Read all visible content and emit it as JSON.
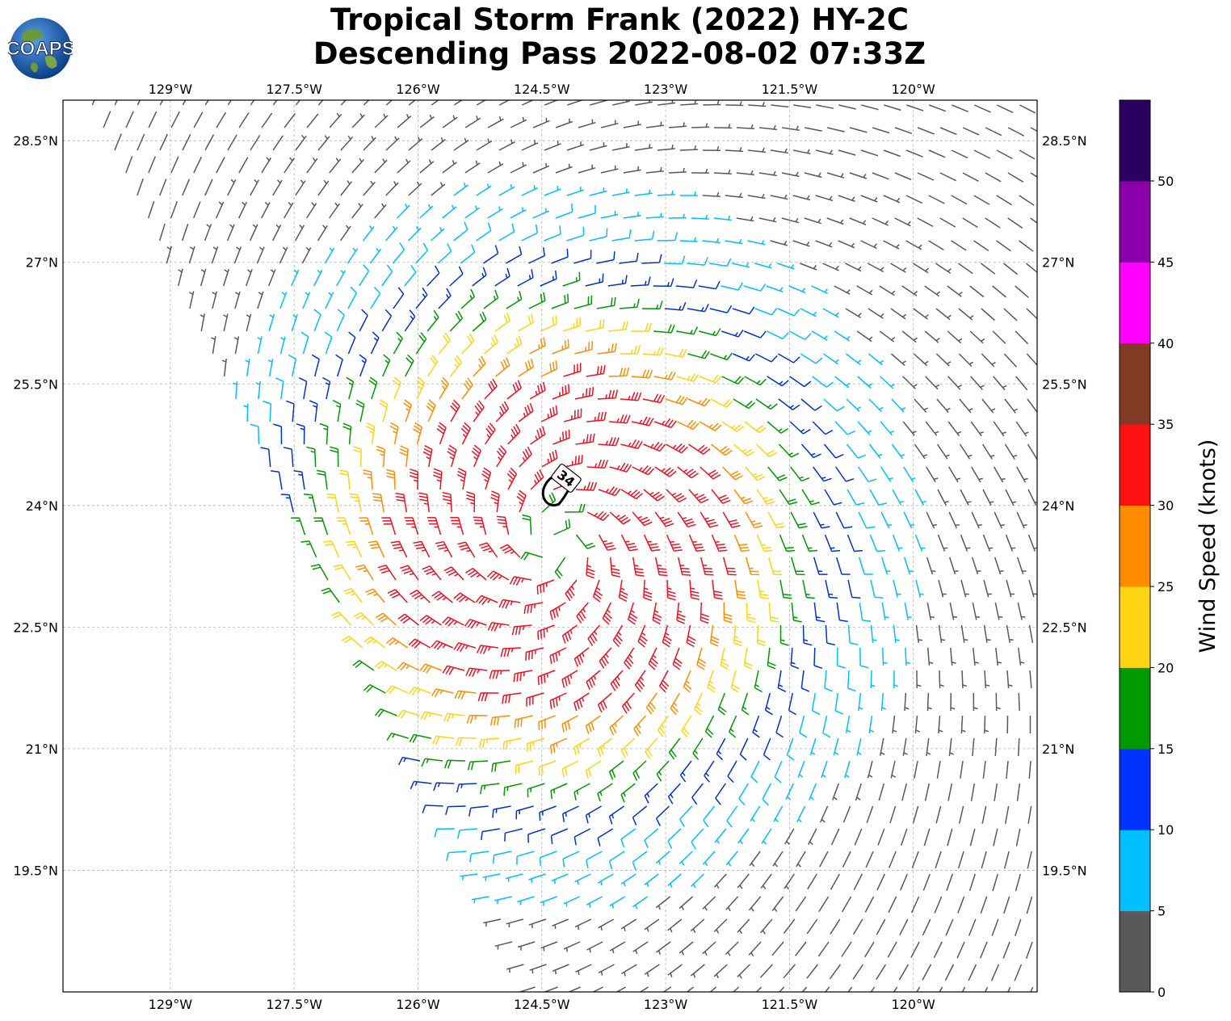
{
  "header": {
    "title_line1": "Tropical Storm Frank (2022) HY-2C",
    "title_line2": "Descending Pass 2022-08-02 07:33Z",
    "logo_text": "COAPS"
  },
  "map": {
    "lon_range": [
      -130.3,
      -118.5
    ],
    "lat_range": [
      18.0,
      29.0
    ],
    "grid": true,
    "lon_ticks": [
      {
        "value": -129.0,
        "label": "129°W"
      },
      {
        "value": -127.5,
        "label": "127.5°W"
      },
      {
        "value": -126.0,
        "label": "126°W"
      },
      {
        "value": -124.5,
        "label": "124.5°W"
      },
      {
        "value": -123.0,
        "label": "123°W"
      },
      {
        "value": -121.5,
        "label": "121.5°W"
      },
      {
        "value": -120.0,
        "label": "120°W"
      }
    ],
    "lat_ticks": [
      {
        "value": 28.5,
        "label": "28.5°N"
      },
      {
        "value": 27.0,
        "label": "27°N"
      },
      {
        "value": 25.5,
        "label": "25.5°N"
      },
      {
        "value": 24.0,
        "label": "24°N"
      },
      {
        "value": 22.5,
        "label": "22.5°N"
      },
      {
        "value": 21.0,
        "label": "21°N"
      },
      {
        "value": 19.5,
        "label": "19.5°N"
      }
    ],
    "storm_center": {
      "lon": -124.35,
      "lat": 23.55
    },
    "contour": {
      "label": "34",
      "color": "#000000"
    },
    "swath_west_edge": [
      [
        -129.0,
        27.0
      ],
      [
        -129.95,
        28.95
      ],
      [
        -124.5,
        17.9
      ],
      [
        -126.0,
        20.9
      ]
    ]
  },
  "colorbar": {
    "label": "Wind Speed (knots)",
    "ticks": [
      "0",
      "5",
      "10",
      "15",
      "20",
      "25",
      "30",
      "35",
      "40",
      "45",
      "50"
    ],
    "bins": [
      {
        "min": 0,
        "max": 5,
        "color": "#595959"
      },
      {
        "min": 5,
        "max": 10,
        "color": "#00bfff"
      },
      {
        "min": 10,
        "max": 15,
        "color": "#0033ff"
      },
      {
        "min": 15,
        "max": 20,
        "color": "#009900"
      },
      {
        "min": 20,
        "max": 25,
        "color": "#ffd412"
      },
      {
        "min": 25,
        "max": 30,
        "color": "#ff8c00"
      },
      {
        "min": 30,
        "max": 35,
        "color": "#ff1111"
      },
      {
        "min": 35,
        "max": 40,
        "color": "#833a24"
      },
      {
        "min": 40,
        "max": 45,
        "color": "#ff00ff"
      },
      {
        "min": 45,
        "max": 50,
        "color": "#8b00aa"
      },
      {
        "min": 50,
        "max": 55,
        "color": "#2b0060"
      }
    ]
  },
  "barb_colors": {
    "calm": "#595959",
    "light": "#00bfff",
    "blue": "#0033cc",
    "green": "#009900",
    "yellow": "#ffd412",
    "orange": "#ff8c00",
    "red": "#ee1122"
  }
}
